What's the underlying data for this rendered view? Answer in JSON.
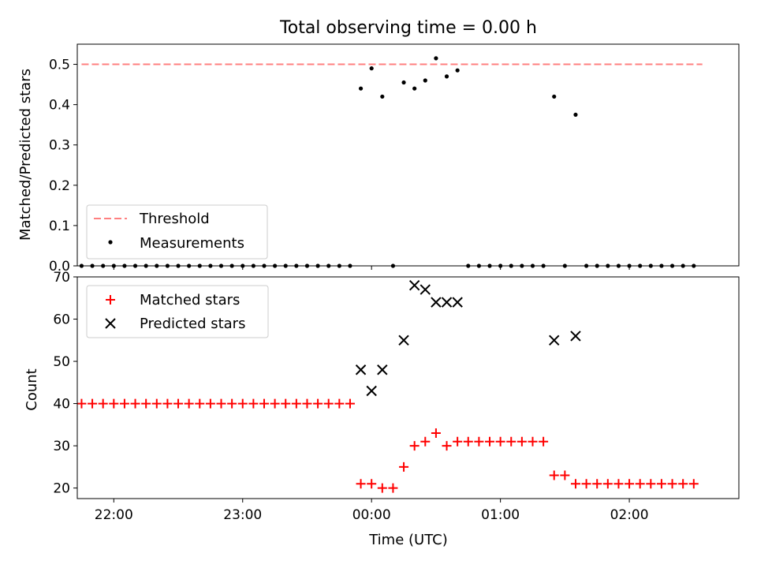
{
  "chart_data": [
    {
      "type": "scatter",
      "title": "Total observing time = 0.00 h",
      "xlabel": "",
      "ylabel": "Matched/Predicted stars",
      "xlim": [
        "21:43",
        "02:51"
      ],
      "ylim": [
        0.0,
        0.55
      ],
      "yticks": [
        "0.0",
        "0.1",
        "0.2",
        "0.3",
        "0.4",
        "0.5"
      ],
      "legend_position": "lower-left",
      "series": [
        {
          "name": "Threshold",
          "style": "dashed-line",
          "color": "#ff8080",
          "points": [
            [
              "21:45",
              0.5
            ],
            [
              "02:34",
              0.5
            ]
          ]
        },
        {
          "name": "Measurements",
          "style": "dot",
          "color": "#000000",
          "points": [
            [
              "21:45",
              0.0
            ],
            [
              "21:50",
              0.0
            ],
            [
              "21:55",
              0.0
            ],
            [
              "22:00",
              0.0
            ],
            [
              "22:05",
              0.0
            ],
            [
              "22:10",
              0.0
            ],
            [
              "22:15",
              0.0
            ],
            [
              "22:20",
              0.0
            ],
            [
              "22:25",
              0.0
            ],
            [
              "22:30",
              0.0
            ],
            [
              "22:35",
              0.0
            ],
            [
              "22:40",
              0.0
            ],
            [
              "22:45",
              0.0
            ],
            [
              "22:50",
              0.0
            ],
            [
              "22:55",
              0.0
            ],
            [
              "23:00",
              0.0
            ],
            [
              "23:05",
              0.0
            ],
            [
              "23:10",
              0.0
            ],
            [
              "23:15",
              0.0
            ],
            [
              "23:20",
              0.0
            ],
            [
              "23:25",
              0.0
            ],
            [
              "23:30",
              0.0
            ],
            [
              "23:35",
              0.0
            ],
            [
              "23:40",
              0.0
            ],
            [
              "23:45",
              0.0
            ],
            [
              "23:50",
              0.0
            ],
            [
              "23:55",
              0.44
            ],
            [
              "00:00",
              0.49
            ],
            [
              "00:05",
              0.42
            ],
            [
              "00:10",
              0.0
            ],
            [
              "00:15",
              0.455
            ],
            [
              "00:20",
              0.44
            ],
            [
              "00:25",
              0.46
            ],
            [
              "00:30",
              0.515
            ],
            [
              "00:35",
              0.47
            ],
            [
              "00:40",
              0.485
            ],
            [
              "00:45",
              0.0
            ],
            [
              "00:50",
              0.0
            ],
            [
              "00:55",
              0.0
            ],
            [
              "01:00",
              0.0
            ],
            [
              "01:05",
              0.0
            ],
            [
              "01:10",
              0.0
            ],
            [
              "01:15",
              0.0
            ],
            [
              "01:20",
              0.0
            ],
            [
              "01:25",
              0.42
            ],
            [
              "01:30",
              0.0
            ],
            [
              "01:35",
              0.375
            ],
            [
              "01:40",
              0.0
            ],
            [
              "01:45",
              0.0
            ],
            [
              "01:50",
              0.0
            ],
            [
              "01:55",
              0.0
            ],
            [
              "02:00",
              0.0
            ],
            [
              "02:05",
              0.0
            ],
            [
              "02:10",
              0.0
            ],
            [
              "02:15",
              0.0
            ],
            [
              "02:20",
              0.0
            ],
            [
              "02:25",
              0.0
            ],
            [
              "02:30",
              0.0
            ]
          ]
        }
      ]
    },
    {
      "type": "scatter",
      "xlabel": "Time (UTC)",
      "ylabel": "Count",
      "xlim": [
        "21:43",
        "02:51"
      ],
      "ylim": [
        17.5,
        70
      ],
      "yticks": [
        "20",
        "30",
        "40",
        "50",
        "60",
        "70"
      ],
      "xticks": [
        "22:00",
        "23:00",
        "00:00",
        "01:00",
        "02:00"
      ],
      "legend_position": "upper-left",
      "series": [
        {
          "name": "Matched stars",
          "marker": "plus",
          "color": "#ff0000",
          "points": [
            [
              "21:45",
              40
            ],
            [
              "21:50",
              40
            ],
            [
              "21:55",
              40
            ],
            [
              "22:00",
              40
            ],
            [
              "22:05",
              40
            ],
            [
              "22:10",
              40
            ],
            [
              "22:15",
              40
            ],
            [
              "22:20",
              40
            ],
            [
              "22:25",
              40
            ],
            [
              "22:30",
              40
            ],
            [
              "22:35",
              40
            ],
            [
              "22:40",
              40
            ],
            [
              "22:45",
              40
            ],
            [
              "22:50",
              40
            ],
            [
              "22:55",
              40
            ],
            [
              "23:00",
              40
            ],
            [
              "23:05",
              40
            ],
            [
              "23:10",
              40
            ],
            [
              "23:15",
              40
            ],
            [
              "23:20",
              40
            ],
            [
              "23:25",
              40
            ],
            [
              "23:30",
              40
            ],
            [
              "23:35",
              40
            ],
            [
              "23:40",
              40
            ],
            [
              "23:45",
              40
            ],
            [
              "23:50",
              40
            ],
            [
              "23:55",
              21
            ],
            [
              "00:00",
              21
            ],
            [
              "00:05",
              20
            ],
            [
              "00:10",
              20
            ],
            [
              "00:15",
              25
            ],
            [
              "00:20",
              30
            ],
            [
              "00:25",
              31
            ],
            [
              "00:30",
              33
            ],
            [
              "00:35",
              30
            ],
            [
              "00:40",
              31
            ],
            [
              "00:45",
              31
            ],
            [
              "00:50",
              31
            ],
            [
              "00:55",
              31
            ],
            [
              "01:00",
              31
            ],
            [
              "01:05",
              31
            ],
            [
              "01:10",
              31
            ],
            [
              "01:15",
              31
            ],
            [
              "01:20",
              31
            ],
            [
              "01:25",
              23
            ],
            [
              "01:30",
              23
            ],
            [
              "01:35",
              21
            ],
            [
              "01:40",
              21
            ],
            [
              "01:45",
              21
            ],
            [
              "01:50",
              21
            ],
            [
              "01:55",
              21
            ],
            [
              "02:00",
              21
            ],
            [
              "02:05",
              21
            ],
            [
              "02:10",
              21
            ],
            [
              "02:15",
              21
            ],
            [
              "02:20",
              21
            ],
            [
              "02:25",
              21
            ],
            [
              "02:30",
              21
            ]
          ]
        },
        {
          "name": "Predicted stars",
          "marker": "x",
          "color": "#000000",
          "points": [
            [
              "23:55",
              48
            ],
            [
              "00:00",
              43
            ],
            [
              "00:05",
              48
            ],
            [
              "00:15",
              55
            ],
            [
              "00:20",
              68
            ],
            [
              "00:25",
              67
            ],
            [
              "00:30",
              64
            ],
            [
              "00:35",
              64
            ],
            [
              "00:40",
              64
            ],
            [
              "01:25",
              55
            ],
            [
              "01:35",
              56
            ]
          ]
        }
      ]
    }
  ]
}
